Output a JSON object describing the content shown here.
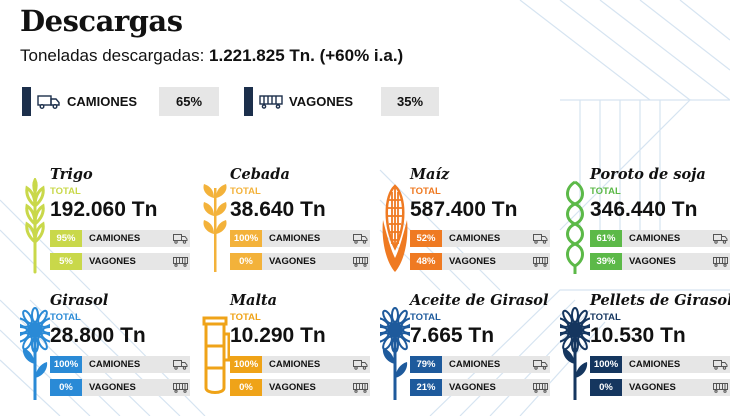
{
  "header": {
    "title": "Descargas",
    "subtitle_label": "Toneladas descargadas:",
    "subtitle_value": "1.221.825 Tn. (+60% i.a.)"
  },
  "modes": [
    {
      "label": "CAMIONES",
      "pct": "65%",
      "icon": "truck-icon"
    },
    {
      "label": "VAGONES",
      "pct": "35%",
      "icon": "railcar-icon"
    }
  ],
  "total_label": "TOTAL",
  "row_labels": {
    "trucks": "CAMIONES",
    "rail": "VAGONES"
  },
  "products": [
    {
      "name": "Trigo",
      "total": "192.060 Tn",
      "trucks_pct": "95%",
      "rail_pct": "5%",
      "color": "#c9d84a",
      "icon": "wheat-icon"
    },
    {
      "name": "Cebada",
      "total": "38.640 Tn",
      "trucks_pct": "100%",
      "rail_pct": "0%",
      "color": "#f3b23a",
      "icon": "barley-icon"
    },
    {
      "name": "Maíz",
      "total": "587.400 Tn",
      "trucks_pct": "52%",
      "rail_pct": "48%",
      "color": "#ef7a22",
      "icon": "corn-icon"
    },
    {
      "name": "Poroto de soja",
      "total": "346.440 Tn",
      "trucks_pct": "61%",
      "rail_pct": "39%",
      "color": "#5cb948",
      "icon": "soybean-icon"
    },
    {
      "name": "Girasol",
      "total": "28.800 Tn",
      "trucks_pct": "100%",
      "rail_pct": "0%",
      "color": "#2a8ad6",
      "icon": "sunflower-icon"
    },
    {
      "name": "Malta",
      "total": "10.290 Tn",
      "trucks_pct": "100%",
      "rail_pct": "0%",
      "color": "#efa318",
      "icon": "malt-jar-icon"
    },
    {
      "name": "Aceite de Girasol",
      "total": "7.665 Tn",
      "trucks_pct": "79%",
      "rail_pct": "21%",
      "color": "#1e5a9c",
      "icon": "sunflower-oil-icon"
    },
    {
      "name": "Pellets de Girasol",
      "total": "10.530 Tn",
      "trucks_pct": "100%",
      "rail_pct": "0%",
      "color": "#15365f",
      "icon": "sunflower-pellets-icon"
    }
  ]
}
